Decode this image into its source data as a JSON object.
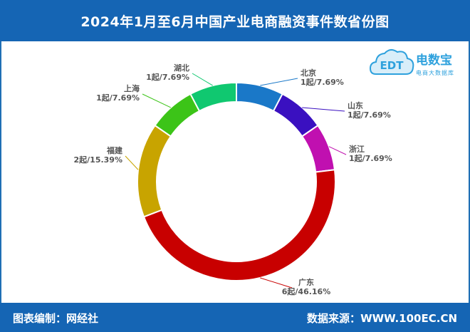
{
  "header": {
    "title": "2024年1月至6月中国产业电商融资事件数省份图"
  },
  "logo": {
    "brand": "电数宝",
    "sub": "电商大数据库",
    "mark": "EDT"
  },
  "footer": {
    "left_label": "图表编制：",
    "left_value": "网经社",
    "right_label": "数据来源：",
    "right_value": "WWW.100EC.CN"
  },
  "chart_data": {
    "type": "pie",
    "donut": true,
    "title": "2024年1月至6月中国产业电商融资事件数省份图",
    "slices": [
      {
        "name": "北京",
        "label": "1起/7.69%",
        "value": 1,
        "percent": 7.69,
        "color": "#1a78c8"
      },
      {
        "name": "山东",
        "label": "1起/7.69%",
        "value": 1,
        "percent": 7.69,
        "color": "#3a10c0"
      },
      {
        "name": "浙江",
        "label": "1起/7.69%",
        "value": 1,
        "percent": 7.69,
        "color": "#c010b0"
      },
      {
        "name": "广东",
        "label": "6起/46.16%",
        "value": 6,
        "percent": 46.16,
        "color": "#c80000"
      },
      {
        "name": "福建",
        "label": "2起/15.39%",
        "value": 2,
        "percent": 15.39,
        "color": "#c8a400"
      },
      {
        "name": "上海",
        "label": "1起/7.69%",
        "value": 1,
        "percent": 7.69,
        "color": "#3cc418"
      },
      {
        "name": "湖北",
        "label": "1起/7.69%",
        "value": 1,
        "percent": 7.69,
        "color": "#10c870"
      }
    ]
  }
}
